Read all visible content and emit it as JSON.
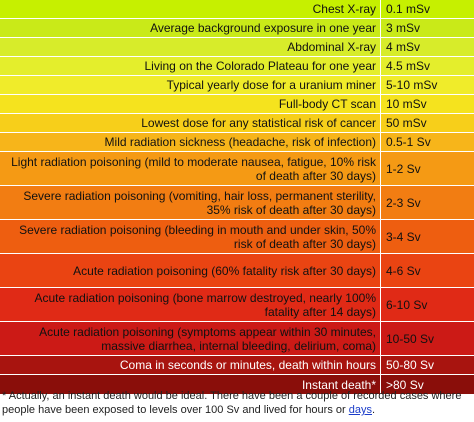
{
  "table": {
    "rows": [
      {
        "desc": "Chest X-ray",
        "dose": "0.1 mSv",
        "bg": "#c6f000",
        "fg": "#111111",
        "h": 19
      },
      {
        "desc": "Average background exposure in one year",
        "dose": "3 mSv",
        "bg": "#c9ea18",
        "fg": "#111111",
        "h": 19
      },
      {
        "desc": "Abdominal X-ray",
        "dose": "4 mSv",
        "bg": "#d7ec2a",
        "fg": "#111111",
        "h": 19
      },
      {
        "desc": "Living on the Colorado Plateau for one year",
        "dose": "4.5 mSv",
        "bg": "#e4ee2c",
        "fg": "#111111",
        "h": 19
      },
      {
        "desc": "Typical yearly dose for a uranium miner",
        "dose": "5-10 mSv",
        "bg": "#f0ec2a",
        "fg": "#111111",
        "h": 19
      },
      {
        "desc": "Full-body CT scan",
        "dose": "10 mSv",
        "bg": "#f5e31e",
        "fg": "#111111",
        "h": 19
      },
      {
        "desc": "Lowest dose for any statistical risk of cancer",
        "dose": "50 mSv",
        "bg": "#f7cf1a",
        "fg": "#111111",
        "h": 19
      },
      {
        "desc": "Mild radiation sickness (headache, risk of infection)",
        "dose": "0.5-1 Sv",
        "bg": "#f7b51a",
        "fg": "#111111",
        "h": 19
      },
      {
        "desc": "Light radiation poisoning (mild to moderate nausea, fatigue, 10% risk of death after 30 days)",
        "dose": "1-2 Sv",
        "bg": "#f59a14",
        "fg": "#111111",
        "h": 34
      },
      {
        "desc": "Severe radiation poisoning (vomiting, hair loss, permanent sterility, 35% risk of death after 30 days)",
        "dose": "2-3 Sv",
        "bg": "#f27d12",
        "fg": "#111111",
        "h": 34
      },
      {
        "desc": "Severe radiation poisoning (bleeding in mouth and under skin, 50% risk of death after 30 days)",
        "dose": "3-4 Sv",
        "bg": "#ee5e10",
        "fg": "#111111",
        "h": 34
      },
      {
        "desc": "Acute radiation poisoning (60% fatality risk after 30 days)",
        "dose": "4-6 Sv",
        "bg": "#ea4412",
        "fg": "#111111",
        "h": 34
      },
      {
        "desc": "Acute radiation poisoning (bone marrow destroyed, nearly 100% fatality after 14 days)",
        "dose": "6-10 Sv",
        "bg": "#e02a16",
        "fg": "#111111",
        "h": 34
      },
      {
        "desc": "Acute radiation poisoning (symptoms appear within 30 minutes, massive diarrhea, internal bleeding, delirium, coma)",
        "dose": "10-50 Sv",
        "bg": "#cc1a16",
        "fg": "#111111",
        "h": 34
      },
      {
        "desc": "Coma in seconds or minutes, death within hours",
        "dose": "50-80 Sv",
        "bg": "#a8140f",
        "fg": "#ffffff",
        "h": 19
      },
      {
        "desc": "Instant death*",
        "dose": ">80 Sv",
        "bg": "#8a0e0a",
        "fg": "#ffffff",
        "h": 20
      }
    ]
  },
  "footnote": {
    "text": "* Actually, an instant death would be ideal. There have been a couple of recorded cases where people have been exposed to levels over 100 Sv and lived for hours or ",
    "link": "days",
    "end": "."
  }
}
